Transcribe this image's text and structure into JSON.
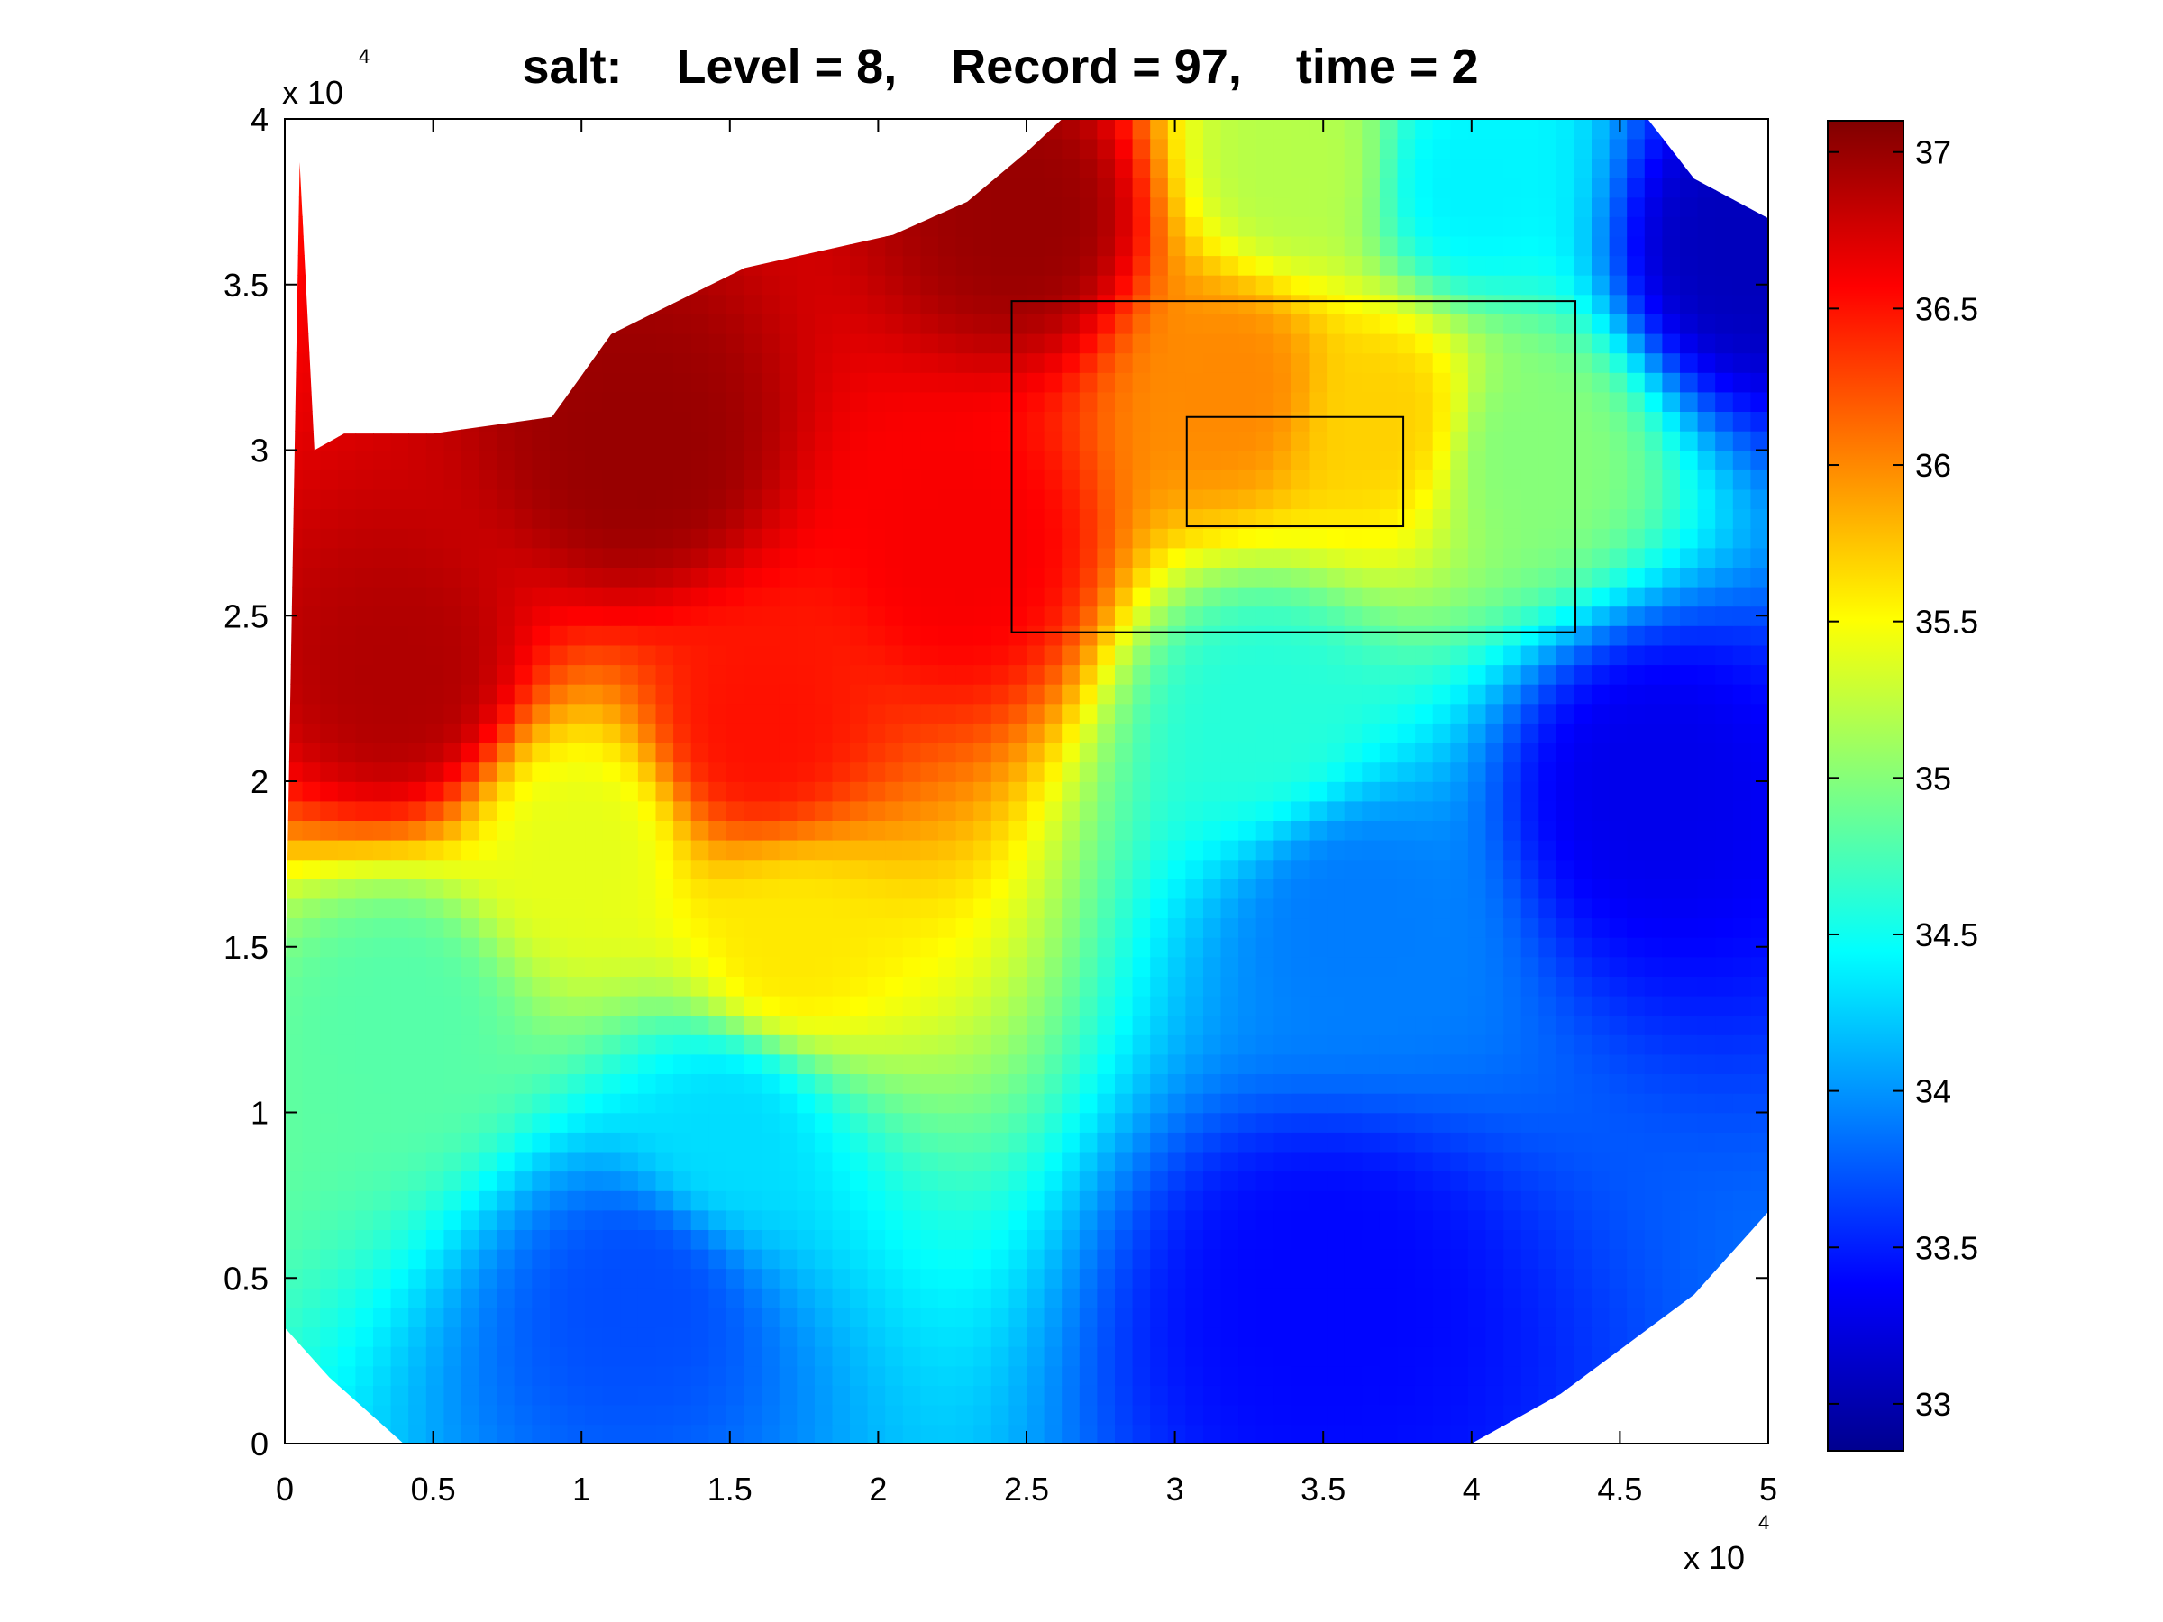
{
  "chart_data": {
    "type": "heatmap",
    "title": "salt:    Level = 8,    Record = 97,    time = 2",
    "variable": "salt",
    "level": 8,
    "record": 97,
    "time": 2,
    "xlabel": "",
    "ylabel": "",
    "x_multiplier": "x 10",
    "x_multiplier_exp": "4",
    "y_multiplier": "x 10",
    "y_multiplier_exp": "4",
    "xlim": [
      0,
      5
    ],
    "ylim": [
      0,
      4
    ],
    "xticks": [
      0,
      0.5,
      1,
      1.5,
      2,
      2.5,
      3,
      3.5,
      4,
      4.5,
      5
    ],
    "xtick_labels": [
      "0",
      "0.5",
      "1",
      "1.5",
      "2",
      "2.5",
      "3",
      "3.5",
      "4",
      "4.5",
      "5"
    ],
    "yticks": [
      0,
      0.5,
      1,
      1.5,
      2,
      2.5,
      3,
      3.5,
      4
    ],
    "ytick_labels": [
      "0",
      "0.5",
      "1",
      "1.5",
      "2",
      "2.5",
      "3",
      "3.5",
      "4"
    ],
    "colorbar": {
      "colormap": "jet",
      "clim": [
        32.85,
        37.1
      ],
      "ticks": [
        33,
        33.5,
        34,
        34.5,
        35,
        35.5,
        36,
        36.5,
        37
      ],
      "tick_labels": [
        "33",
        "33.5",
        "34",
        "34.5",
        "35",
        "35.5",
        "36",
        "36.5",
        "37"
      ]
    },
    "domain_outline": [
      [
        0.05,
        3.87
      ],
      [
        0.1,
        3.0
      ],
      [
        0.2,
        3.05
      ],
      [
        0.5,
        3.05
      ],
      [
        0.9,
        3.1
      ],
      [
        1.1,
        3.35
      ],
      [
        1.55,
        3.55
      ],
      [
        2.05,
        3.65
      ],
      [
        2.3,
        3.75
      ],
      [
        2.5,
        3.9
      ],
      [
        2.68,
        4.05
      ],
      [
        3.8,
        4.05
      ],
      [
        4.55,
        4.05
      ],
      [
        4.75,
        3.82
      ],
      [
        5.0,
        3.7
      ],
      [
        5.0,
        0.7
      ],
      [
        4.75,
        0.45
      ],
      [
        4.6,
        0.35
      ],
      [
        4.3,
        0.15
      ],
      [
        4.0,
        0.0
      ],
      [
        1.5,
        0.0
      ],
      [
        0.4,
        0.0
      ],
      [
        0.15,
        0.2
      ],
      [
        0.0,
        0.35
      ],
      [
        0.0,
        1.3
      ]
    ],
    "salinity_samples": [
      {
        "x": 1.2,
        "y": 3.0,
        "v": 37.0
      },
      {
        "x": 2.5,
        "y": 3.7,
        "v": 37.0
      },
      {
        "x": 0.4,
        "y": 2.3,
        "v": 36.9
      },
      {
        "x": 1.6,
        "y": 2.15,
        "v": 36.5
      },
      {
        "x": 2.3,
        "y": 2.7,
        "v": 36.6
      },
      {
        "x": 3.2,
        "y": 3.2,
        "v": 36.0
      },
      {
        "x": 3.7,
        "y": 3.1,
        "v": 35.7
      },
      {
        "x": 1.0,
        "y": 1.8,
        "v": 35.4
      },
      {
        "x": 1.7,
        "y": 1.5,
        "v": 35.6
      },
      {
        "x": 3.4,
        "y": 3.85,
        "v": 35.2
      },
      {
        "x": 4.2,
        "y": 3.0,
        "v": 35.0
      },
      {
        "x": 0.4,
        "y": 1.3,
        "v": 34.8
      },
      {
        "x": 3.3,
        "y": 2.2,
        "v": 34.6
      },
      {
        "x": 1.5,
        "y": 0.95,
        "v": 34.3
      },
      {
        "x": 4.0,
        "y": 3.8,
        "v": 34.4
      },
      {
        "x": 3.6,
        "y": 1.6,
        "v": 33.9
      },
      {
        "x": 1.2,
        "y": 0.45,
        "v": 33.7
      },
      {
        "x": 4.6,
        "y": 2.0,
        "v": 33.3
      },
      {
        "x": 3.5,
        "y": 0.45,
        "v": 33.4
      },
      {
        "x": 4.9,
        "y": 3.6,
        "v": 33.1
      }
    ],
    "annotations": [
      {
        "type": "rectangle",
        "x": [
          2.45,
          4.35
        ],
        "y": [
          2.45,
          3.45
        ]
      },
      {
        "type": "rectangle",
        "x": [
          3.04,
          3.77
        ],
        "y": [
          2.77,
          3.1
        ]
      }
    ]
  }
}
